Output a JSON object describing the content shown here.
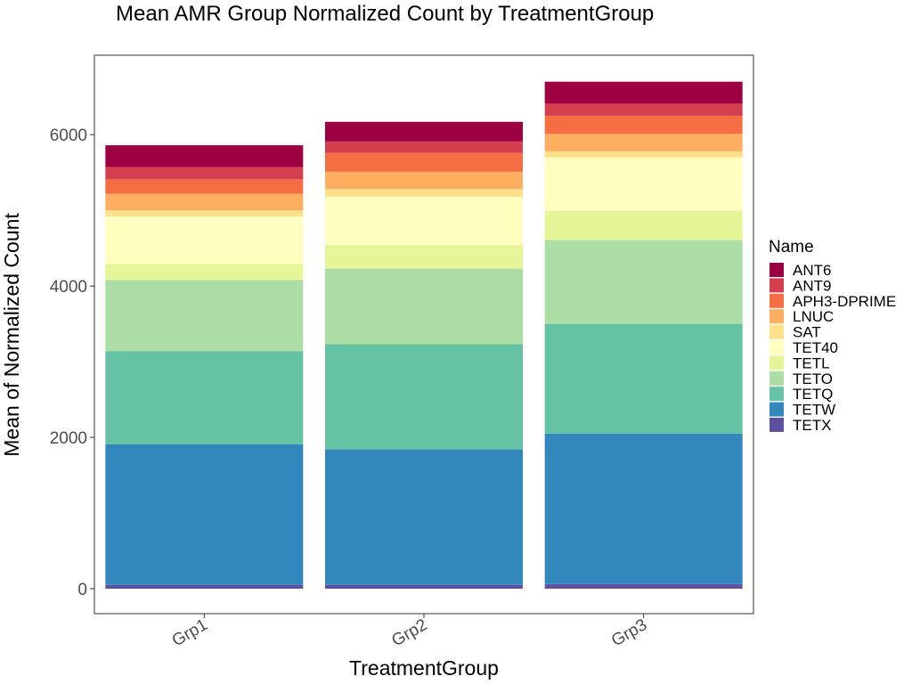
{
  "chart_data": {
    "type": "bar",
    "stacked": true,
    "title": "Mean AMR Group Normalized Count by TreatmentGroup",
    "xlabel": "TreatmentGroup",
    "ylabel": "Mean of Normalized Count",
    "categories": [
      "Grp1",
      "Grp2",
      "Grp3"
    ],
    "y_ticks": [
      0,
      2000,
      4000,
      6000
    ],
    "ylim": [
      -330,
      7050
    ],
    "legend_title": "Name",
    "legend_position": "right",
    "grid": false,
    "series": [
      {
        "name": "TETX",
        "color": "#5E4FA2",
        "values": [
          50,
          50,
          60
        ]
      },
      {
        "name": "TETW",
        "color": "#3288BD",
        "values": [
          1860,
          1790,
          1990
        ]
      },
      {
        "name": "TETQ",
        "color": "#66C2A5",
        "values": [
          1230,
          1390,
          1450
        ]
      },
      {
        "name": "TETO",
        "color": "#ABDDA4",
        "values": [
          940,
          1000,
          1110
        ]
      },
      {
        "name": "TETL",
        "color": "#E6F598",
        "values": [
          210,
          310,
          380
        ]
      },
      {
        "name": "TET40",
        "color": "#FFFFBF",
        "values": [
          630,
          640,
          710
        ]
      },
      {
        "name": "SAT",
        "color": "#FEE08B",
        "values": [
          80,
          100,
          80
        ]
      },
      {
        "name": "LNUC",
        "color": "#FDAE61",
        "values": [
          220,
          230,
          230
        ]
      },
      {
        "name": "APH3-DPRIME",
        "color": "#F46D43",
        "values": [
          190,
          250,
          240
        ]
      },
      {
        "name": "ANT9",
        "color": "#D53E4F",
        "values": [
          160,
          150,
          160
        ]
      },
      {
        "name": "ANT6",
        "color": "#9E0142",
        "values": [
          290,
          260,
          290
        ]
      }
    ]
  }
}
